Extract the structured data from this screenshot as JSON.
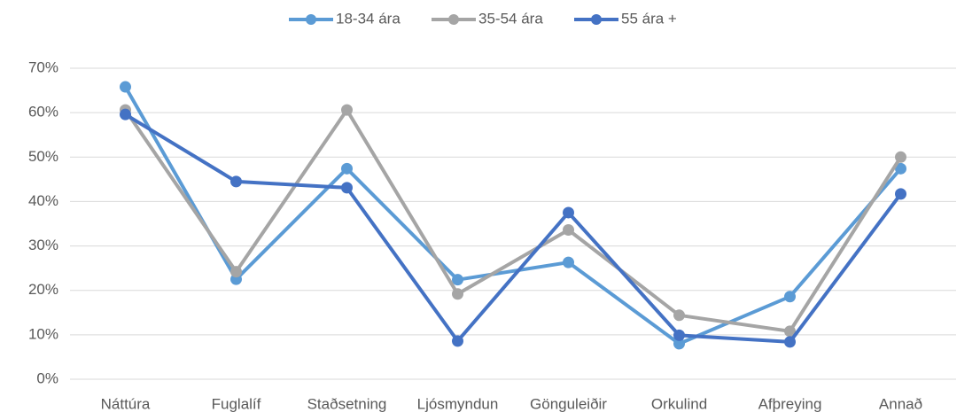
{
  "chart_data": {
    "type": "line",
    "categories": [
      "Náttúra",
      "Fuglalíf",
      "Staðsetning",
      "Ljósmyndun",
      "Gönguleiðir",
      "Orkulind",
      "Afþreying",
      "Annað"
    ],
    "series": [
      {
        "name": "18-34 ára",
        "color": "#5b9bd5",
        "values": [
          65.8,
          22.5,
          47.4,
          22.4,
          26.3,
          8.0,
          18.6,
          47.4
        ]
      },
      {
        "name": "35-54 ára",
        "color": "#a5a5a5",
        "values": [
          60.6,
          24.2,
          60.6,
          19.2,
          33.6,
          14.4,
          10.8,
          50.0
        ]
      },
      {
        "name": "55 ára +",
        "color": "#4472c4",
        "values": [
          59.6,
          44.5,
          43.1,
          8.6,
          37.5,
          9.9,
          8.4,
          41.7
        ]
      }
    ],
    "ylim": [
      0,
      70
    ],
    "yticks": [
      {
        "value": 0,
        "label": "0%"
      },
      {
        "value": 10,
        "label": "10%"
      },
      {
        "value": 20,
        "label": "20%"
      },
      {
        "value": 30,
        "label": "30%"
      },
      {
        "value": 40,
        "label": "40%"
      },
      {
        "value": 50,
        "label": "50%"
      },
      {
        "value": 60,
        "label": "60%"
      },
      {
        "value": 70,
        "label": "70%"
      }
    ],
    "grid": true,
    "legend": "top"
  }
}
